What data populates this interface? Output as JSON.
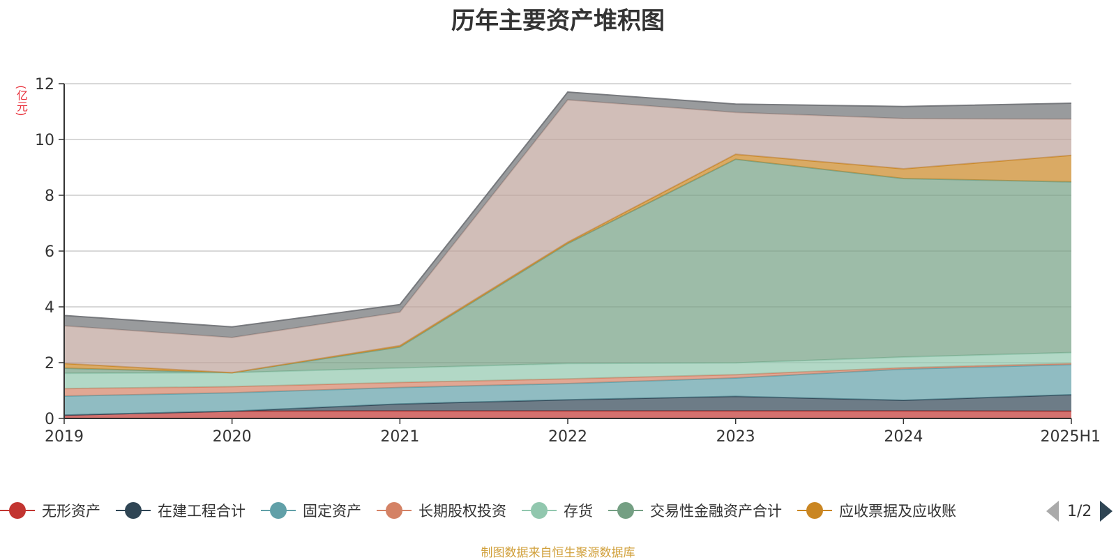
{
  "chart_data": {
    "type": "area",
    "stacked": true,
    "title": "历年主要资产堆积图",
    "ylabel": "(亿元)",
    "xlabel": "",
    "categories": [
      "2019",
      "2020",
      "2021",
      "2022",
      "2023",
      "2024",
      "2025H1"
    ],
    "ylim": [
      0,
      12
    ],
    "yticks": [
      0,
      2,
      4,
      6,
      8,
      10,
      12
    ],
    "grid": true,
    "legend_position": "bottom",
    "series": [
      {
        "name": "无形资产",
        "color": "#c23531",
        "values": [
          0.12,
          0.26,
          0.27,
          0.27,
          0.27,
          0.27,
          0.26
        ]
      },
      {
        "name": "在建工程合计",
        "color": "#2f4554",
        "values": [
          0.0,
          0.0,
          0.25,
          0.4,
          0.52,
          0.38,
          0.59
        ]
      },
      {
        "name": "固定资产",
        "color": "#61a0a8",
        "values": [
          0.68,
          0.66,
          0.59,
          0.58,
          0.66,
          1.12,
          1.08
        ]
      },
      {
        "name": "长期股权投资",
        "color": "#d48265",
        "values": [
          0.27,
          0.22,
          0.18,
          0.17,
          0.12,
          0.05,
          0.04
        ]
      },
      {
        "name": "存货",
        "color": "#91c7ae",
        "values": [
          0.55,
          0.5,
          0.52,
          0.55,
          0.42,
          0.38,
          0.39
        ]
      },
      {
        "name": "交易性金融资产合计",
        "color": "#749f83",
        "values": [
          0.18,
          0.0,
          0.75,
          4.3,
          7.3,
          6.4,
          6.12
        ]
      },
      {
        "name": "应收票据及应收账",
        "color": "#ca8622",
        "values": [
          0.17,
          0.0,
          0.05,
          0.05,
          0.18,
          0.35,
          0.95
        ]
      },
      {
        "name": "",
        "color": "#bda29a",
        "values": [
          1.35,
          1.26,
          1.2,
          5.1,
          1.5,
          1.8,
          1.3
        ]
      },
      {
        "name": "",
        "color": "#6e7074",
        "values": [
          0.37,
          0.38,
          0.27,
          0.28,
          0.3,
          0.43,
          0.57
        ]
      }
    ]
  },
  "legend": {
    "items": [
      {
        "label": "无形资产",
        "color": "#c23531"
      },
      {
        "label": "在建工程合计",
        "color": "#2f4554"
      },
      {
        "label": "固定资产",
        "color": "#61a0a8"
      },
      {
        "label": "长期股权投资",
        "color": "#d48265"
      },
      {
        "label": "存货",
        "color": "#91c7ae"
      },
      {
        "label": "交易性金融资产合计",
        "color": "#749f83"
      },
      {
        "label": "应收票据及应收账",
        "color": "#ca8622"
      }
    ],
    "pager": "1/2"
  },
  "footer": {
    "source": "制图数据来自恒生聚源数据库"
  }
}
